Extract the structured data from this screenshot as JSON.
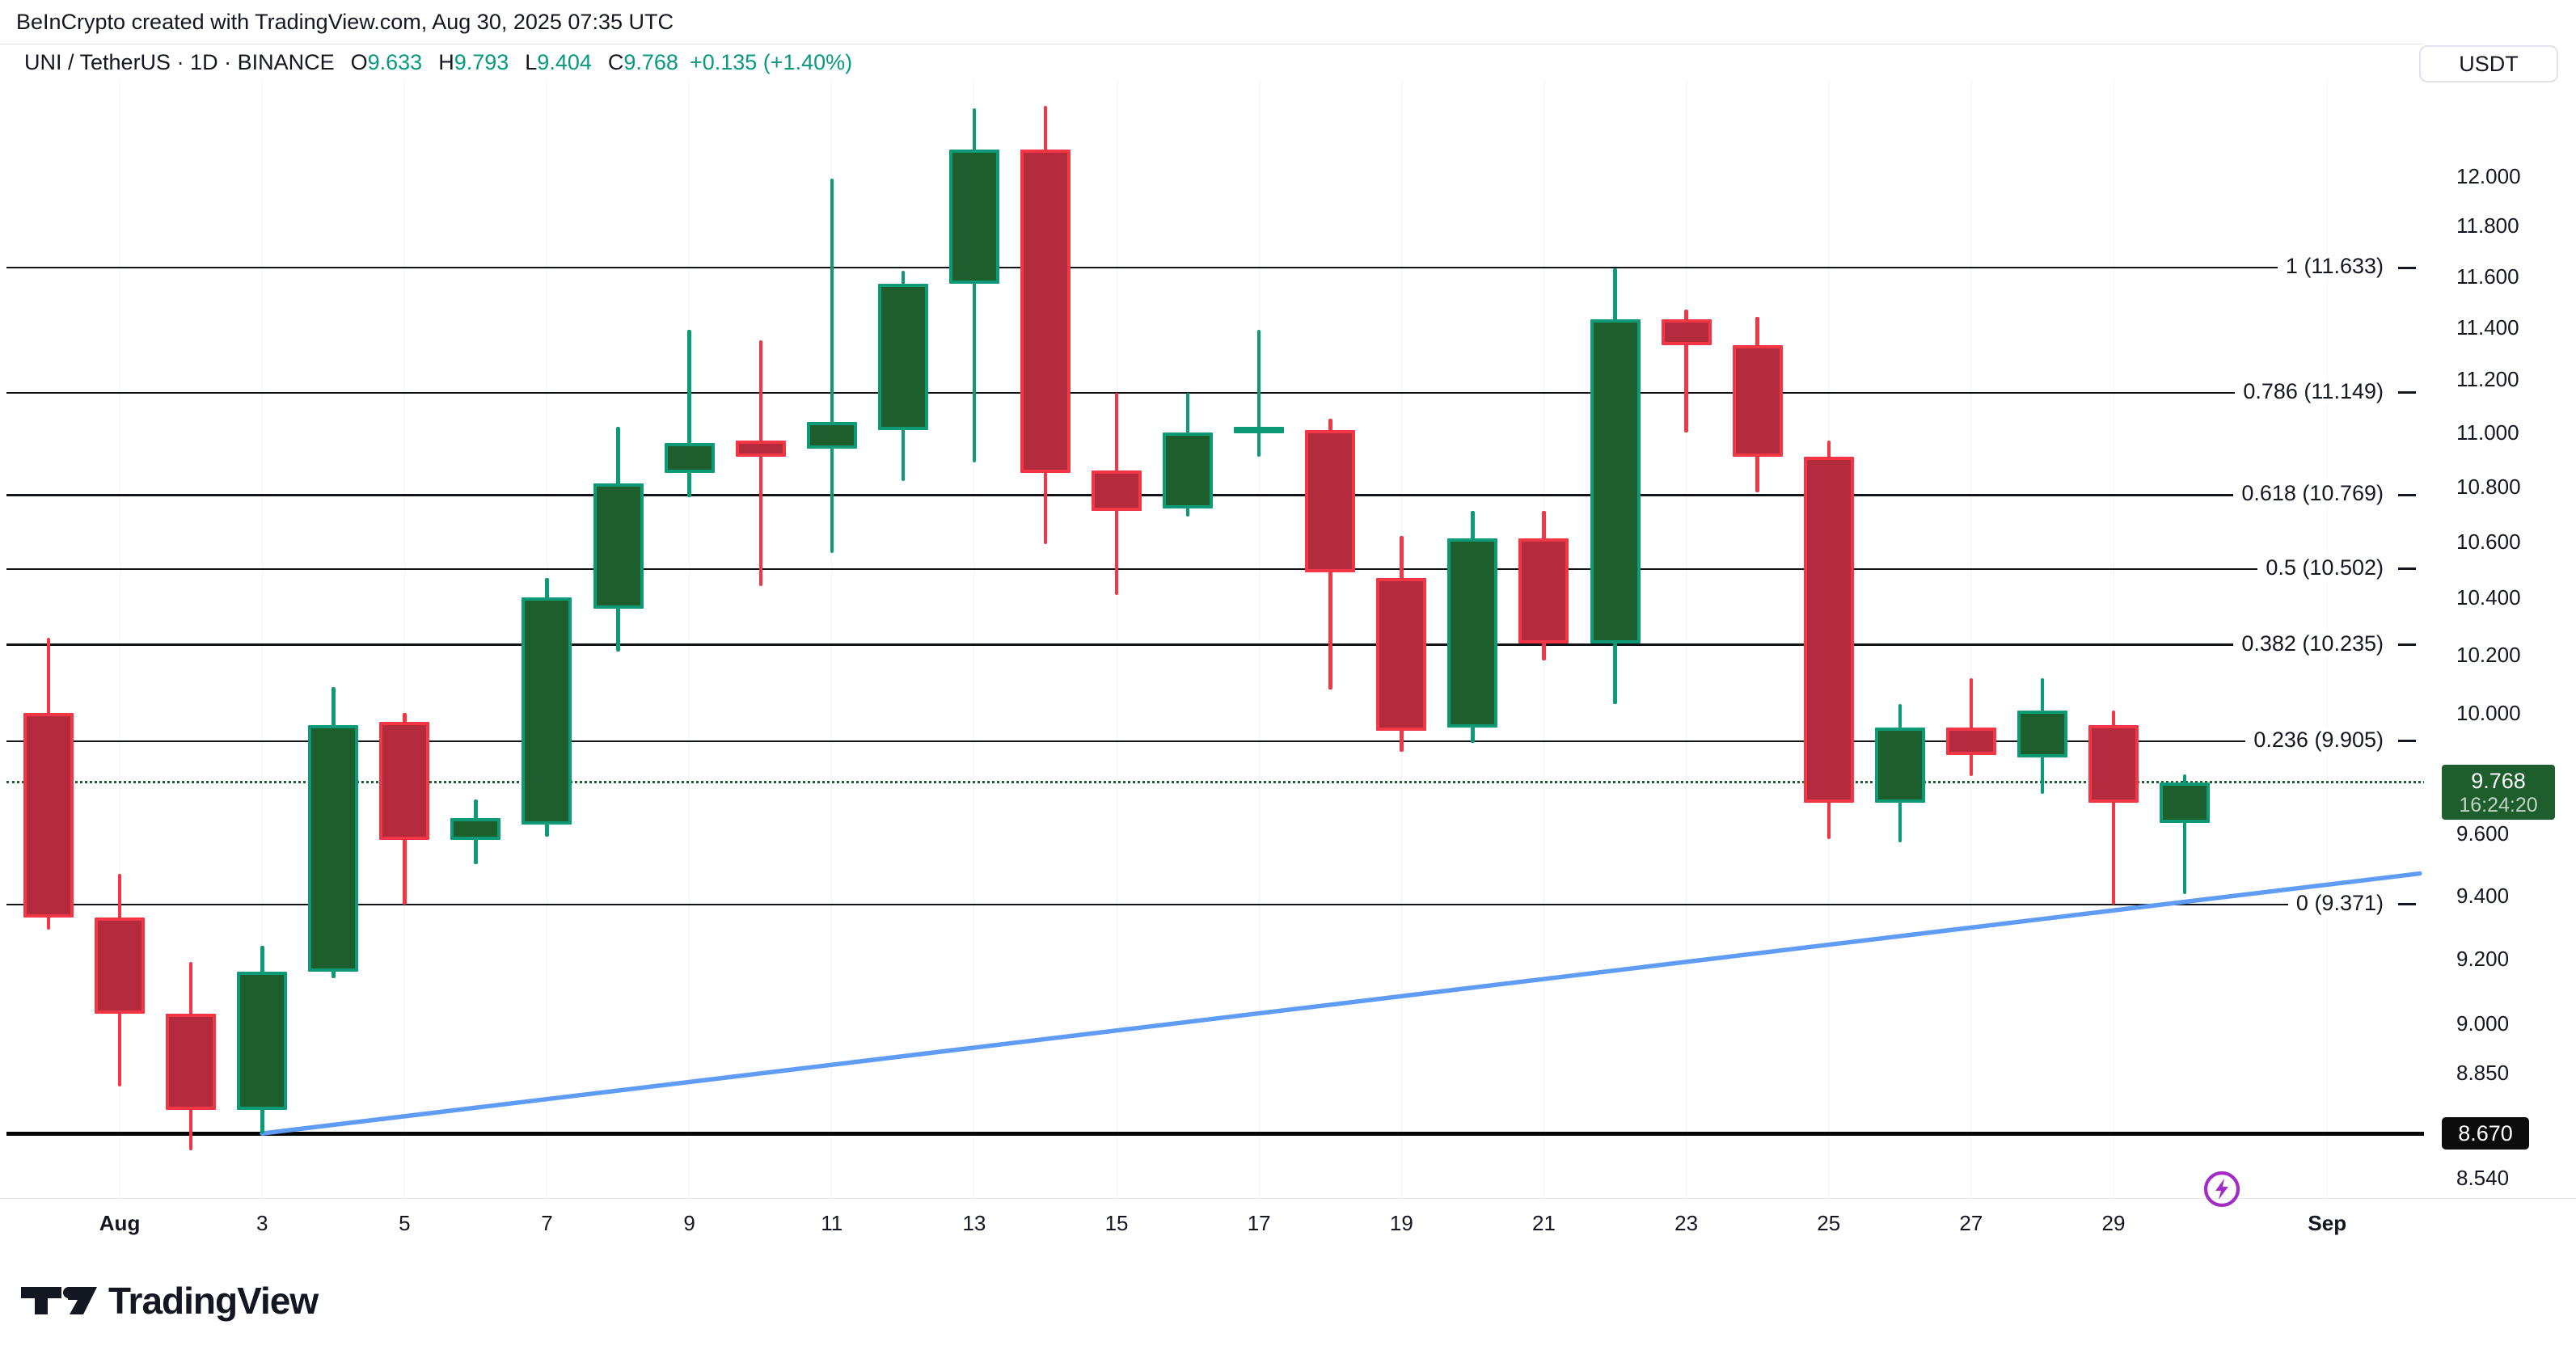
{
  "header": {
    "attribution": "BeInCrypto created with TradingView.com, Aug 30, 2025 07:35 UTC",
    "symbol": "UNI / TetherUS · 1D · BINANCE",
    "ohlc": [
      {
        "label": "O",
        "value": "9.633"
      },
      {
        "label": "H",
        "value": "9.793"
      },
      {
        "label": "L",
        "value": "9.404"
      },
      {
        "label": "C",
        "value": "9.768"
      }
    ],
    "change": "+0.135 (+1.40%)"
  },
  "price_axis": {
    "currency": "USDT",
    "ticks": [
      "12.000",
      "11.800",
      "11.600",
      "11.400",
      "11.200",
      "11.000",
      "10.800",
      "10.600",
      "10.400",
      "10.200",
      "10.000",
      "9.800",
      "9.600",
      "9.400",
      "9.200",
      "9.000",
      "8.850",
      "8.540"
    ],
    "current_badge": {
      "price": "9.768",
      "countdown": "16:24:20"
    },
    "level_badge": "8.670"
  },
  "time_axis": {
    "ticks": [
      {
        "label": "Aug",
        "day": 1,
        "bold": true
      },
      {
        "label": "3",
        "day": 3
      },
      {
        "label": "5",
        "day": 5
      },
      {
        "label": "7",
        "day": 7
      },
      {
        "label": "9",
        "day": 9
      },
      {
        "label": "11",
        "day": 11
      },
      {
        "label": "13",
        "day": 13
      },
      {
        "label": "15",
        "day": 15
      },
      {
        "label": "17",
        "day": 17
      },
      {
        "label": "19",
        "day": 19
      },
      {
        "label": "21",
        "day": 21
      },
      {
        "label": "23",
        "day": 23
      },
      {
        "label": "25",
        "day": 25
      },
      {
        "label": "27",
        "day": 27
      },
      {
        "label": "29",
        "day": 29
      },
      {
        "label": "Sep",
        "day": 32,
        "bold": true
      }
    ]
  },
  "chart_data": {
    "type": "candlestick",
    "title": "UNI / TetherUS · 1D · BINANCE",
    "scale": "log",
    "y_range": [
      8.45,
      12.35
    ],
    "x_range": [
      "Jul 31",
      "Sep 1"
    ],
    "grid": "vertical-faint",
    "legend_position": "none",
    "candles": [
      {
        "date": "Jul 31",
        "o": 10.0,
        "h": 10.26,
        "l": 9.29,
        "c": 9.33
      },
      {
        "date": "Aug 1",
        "o": 9.33,
        "h": 9.47,
        "l": 8.81,
        "c": 9.03
      },
      {
        "date": "Aug 2",
        "o": 9.03,
        "h": 9.19,
        "l": 8.62,
        "c": 8.74
      },
      {
        "date": "Aug 3",
        "o": 8.74,
        "h": 9.24,
        "l": 8.67,
        "c": 9.16
      },
      {
        "date": "Aug 4",
        "o": 9.16,
        "h": 10.09,
        "l": 9.14,
        "c": 9.96
      },
      {
        "date": "Aug 5",
        "o": 9.97,
        "h": 10.0,
        "l": 9.37,
        "c": 9.58
      },
      {
        "date": "Aug 6",
        "o": 9.58,
        "h": 9.71,
        "l": 9.5,
        "c": 9.65
      },
      {
        "date": "Aug 7",
        "o": 9.63,
        "h": 10.47,
        "l": 9.59,
        "c": 10.4
      },
      {
        "date": "Aug 8",
        "o": 10.36,
        "h": 11.02,
        "l": 10.21,
        "c": 10.81
      },
      {
        "date": "Aug 9",
        "o": 10.85,
        "h": 11.39,
        "l": 10.76,
        "c": 10.96
      },
      {
        "date": "Aug 10",
        "o": 10.97,
        "h": 11.35,
        "l": 10.44,
        "c": 10.91
      },
      {
        "date": "Aug 11",
        "o": 10.94,
        "h": 11.99,
        "l": 10.56,
        "c": 11.04
      },
      {
        "date": "Aug 12",
        "o": 11.01,
        "h": 11.62,
        "l": 10.82,
        "c": 11.57
      },
      {
        "date": "Aug 13",
        "o": 11.57,
        "h": 12.28,
        "l": 10.89,
        "c": 12.11
      },
      {
        "date": "Aug 14",
        "o": 12.11,
        "h": 12.29,
        "l": 10.59,
        "c": 10.85
      },
      {
        "date": "Aug 15",
        "o": 10.86,
        "h": 11.15,
        "l": 10.41,
        "c": 10.71
      },
      {
        "date": "Aug 16",
        "o": 10.72,
        "h": 11.15,
        "l": 10.69,
        "c": 11.0
      },
      {
        "date": "Aug 17",
        "o": 11.0,
        "h": 11.39,
        "l": 10.91,
        "c": 11.02
      },
      {
        "date": "Aug 18",
        "o": 11.01,
        "h": 11.05,
        "l": 10.08,
        "c": 10.49
      },
      {
        "date": "Aug 19",
        "o": 10.47,
        "h": 10.62,
        "l": 9.87,
        "c": 9.94
      },
      {
        "date": "Aug 20",
        "o": 9.95,
        "h": 10.71,
        "l": 9.9,
        "c": 10.61
      },
      {
        "date": "Aug 21",
        "o": 10.61,
        "h": 10.71,
        "l": 10.18,
        "c": 10.24
      },
      {
        "date": "Aug 22",
        "o": 10.24,
        "h": 11.63,
        "l": 10.03,
        "c": 11.43
      },
      {
        "date": "Aug 23",
        "o": 11.43,
        "h": 11.47,
        "l": 11.0,
        "c": 11.33
      },
      {
        "date": "Aug 24",
        "o": 11.33,
        "h": 11.44,
        "l": 10.78,
        "c": 10.91
      },
      {
        "date": "Aug 25",
        "o": 10.91,
        "h": 10.97,
        "l": 9.58,
        "c": 9.7
      },
      {
        "date": "Aug 26",
        "o": 9.7,
        "h": 10.03,
        "l": 9.57,
        "c": 9.95
      },
      {
        "date": "Aug 27",
        "o": 9.95,
        "h": 10.12,
        "l": 9.79,
        "c": 9.86
      },
      {
        "date": "Aug 28",
        "o": 9.85,
        "h": 10.12,
        "l": 9.73,
        "c": 10.01
      },
      {
        "date": "Aug 29",
        "o": 9.96,
        "h": 10.01,
        "l": 9.37,
        "c": 9.7
      },
      {
        "date": "Aug 30",
        "o": 9.633,
        "h": 9.793,
        "l": 9.404,
        "c": 9.768
      }
    ],
    "fib_retracement": [
      {
        "label": "1 (11.633)",
        "level": 1,
        "price": 11.633
      },
      {
        "label": "0.786 (11.149)",
        "level": 0.786,
        "price": 11.149
      },
      {
        "label": "0.618 (10.769)",
        "level": 0.618,
        "price": 10.769
      },
      {
        "label": "0.5 (10.502)",
        "level": 0.5,
        "price": 10.502
      },
      {
        "label": "0.382 (10.235)",
        "level": 0.382,
        "price": 10.235
      },
      {
        "label": "0.236 (9.905)",
        "level": 0.236,
        "price": 9.905
      },
      {
        "label": "0 (9.371)",
        "level": 0,
        "price": 9.371
      }
    ],
    "horizontal_line": {
      "price": 8.67,
      "label": "8.670"
    },
    "trendline": {
      "from": {
        "date": "Aug 3",
        "day_index": 3,
        "price": 8.67
      },
      "to": {
        "date": "Sep 2",
        "day_index": 33.3,
        "price": 9.47
      }
    },
    "current_price": {
      "price": 9.768,
      "countdown": "16:24:20"
    }
  },
  "footer": {
    "brand": "TradingView"
  },
  "icons": {
    "boost": "lightning-circle-icon",
    "logo": "tradingview-logo"
  },
  "colors": {
    "up_fill": "#1d5e2c",
    "up_border": "#0d9a76",
    "down_fill": "#b32b3c",
    "down_border": "#f23645",
    "trendline_blue": "#5f9cf6",
    "fib_black": "#101418",
    "text": "#131722",
    "value_green": "#089981",
    "badge_green": "#1d5e2c",
    "badge_black": "#0c0c0d",
    "boost_purple": "#a32cc4",
    "separator": "#e0e3eb",
    "grid_faint": "#f2f3f7"
  }
}
